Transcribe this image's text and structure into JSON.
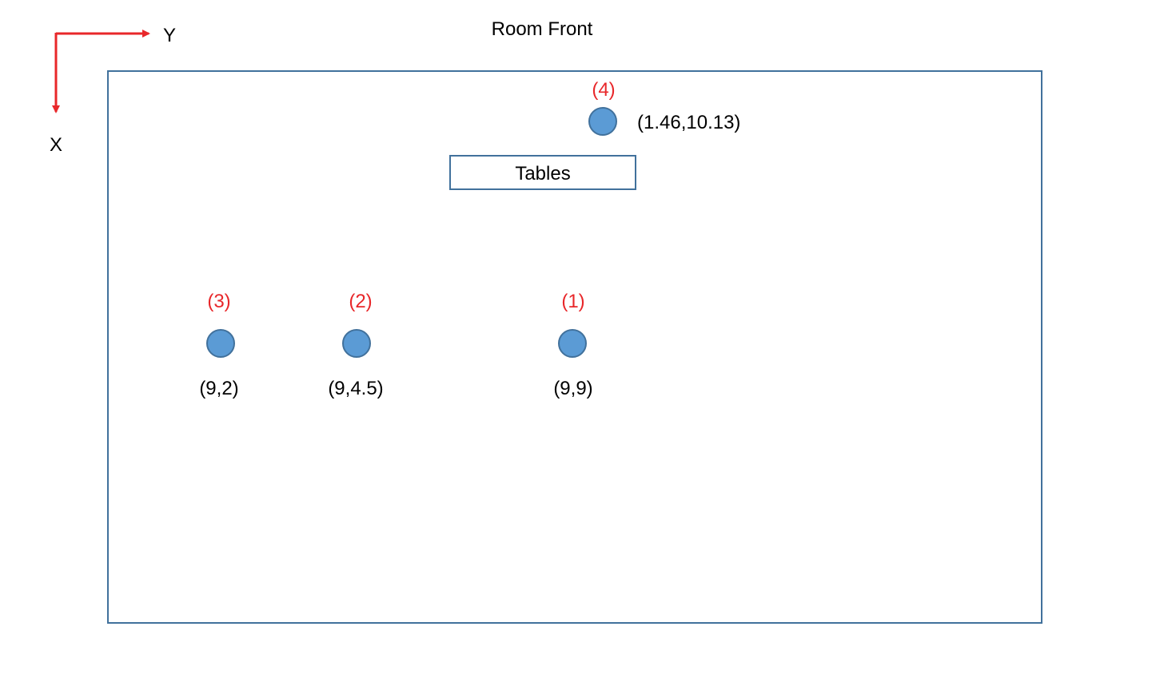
{
  "title": "Room Front",
  "axes": {
    "x_label": "X",
    "y_label": "Y",
    "arrow_color": "#e8272a"
  },
  "tables_label": "Tables",
  "colors": {
    "room_border": "#41719c",
    "point_fill": "#5b9bd5",
    "point_stroke": "#41719c",
    "index_label": "#e8272a",
    "text": "#000000"
  },
  "points": [
    {
      "index_label": "(4)",
      "coord_label": "(1.46,10.13)",
      "x": 1.46,
      "y": 10.13
    },
    {
      "index_label": "(3)",
      "coord_label": "(9,2)",
      "x": 9,
      "y": 2
    },
    {
      "index_label": "(2)",
      "coord_label": "(9,4.5)",
      "x": 9,
      "y": 4.5
    },
    {
      "index_label": "(1)",
      "coord_label": "(9,9)",
      "x": 9,
      "y": 9
    }
  ]
}
